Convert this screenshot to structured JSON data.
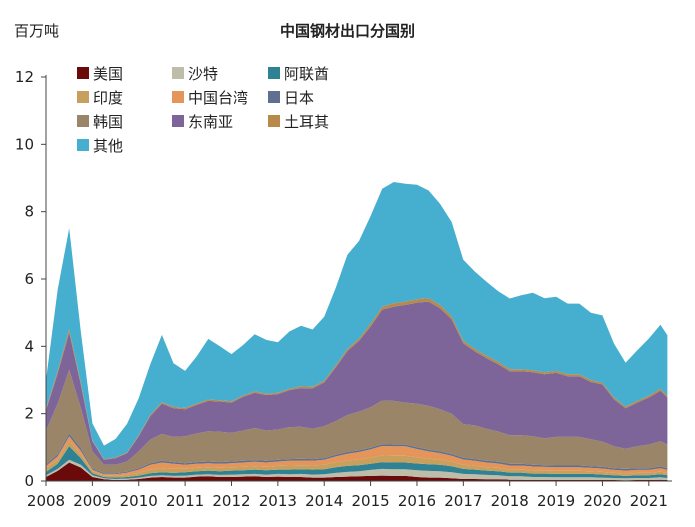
{
  "chart_data": {
    "type": "area",
    "stacked": true,
    "title": "中国钢材出口分国别",
    "ylabel": "百万吨",
    "ylim": [
      0,
      12
    ],
    "yticks": [
      0,
      2,
      4,
      6,
      8,
      10,
      12
    ],
    "xlim": [
      2008.0,
      2021.5
    ],
    "xticks": [
      "2008",
      "2009",
      "2010",
      "2011",
      "2012",
      "2013",
      "2014",
      "2015",
      "2016",
      "2017",
      "2018",
      "2019",
      "2020",
      "2021"
    ],
    "legend_position": "top-left",
    "x": [
      2008.0,
      2008.25,
      2008.5,
      2008.75,
      2009.0,
      2009.25,
      2009.5,
      2009.75,
      2010.0,
      2010.25,
      2010.5,
      2010.75,
      2011.0,
      2011.25,
      2011.5,
      2011.75,
      2012.0,
      2012.25,
      2012.5,
      2012.75,
      2013.0,
      2013.25,
      2013.5,
      2013.75,
      2014.0,
      2014.25,
      2014.5,
      2014.75,
      2015.0,
      2015.25,
      2015.5,
      2015.75,
      2016.0,
      2016.25,
      2016.5,
      2016.75,
      2017.0,
      2017.25,
      2017.5,
      2017.75,
      2018.0,
      2018.25,
      2018.5,
      2018.75,
      2019.0,
      2019.25,
      2019.5,
      2019.75,
      2020.0,
      2020.25,
      2020.5,
      2020.75,
      2021.0,
      2021.25,
      2021.4
    ],
    "series": [
      {
        "name": "美国",
        "color": "#6b0a0a",
        "values": [
          0.12,
          0.3,
          0.55,
          0.4,
          0.12,
          0.05,
          0.03,
          0.04,
          0.06,
          0.1,
          0.12,
          0.1,
          0.1,
          0.13,
          0.14,
          0.12,
          0.12,
          0.13,
          0.14,
          0.12,
          0.13,
          0.12,
          0.12,
          0.1,
          0.1,
          0.12,
          0.13,
          0.14,
          0.15,
          0.16,
          0.15,
          0.15,
          0.12,
          0.1,
          0.1,
          0.08,
          0.06,
          0.06,
          0.05,
          0.05,
          0.04,
          0.04,
          0.03,
          0.03,
          0.03,
          0.03,
          0.03,
          0.03,
          0.03,
          0.03,
          0.02,
          0.03,
          0.03,
          0.04,
          0.03
        ]
      },
      {
        "name": "沙特",
        "color": "#bdbdaa",
        "values": [
          0.05,
          0.06,
          0.08,
          0.08,
          0.05,
          0.03,
          0.03,
          0.03,
          0.04,
          0.05,
          0.05,
          0.05,
          0.06,
          0.06,
          0.06,
          0.06,
          0.07,
          0.07,
          0.07,
          0.07,
          0.08,
          0.08,
          0.09,
          0.09,
          0.1,
          0.12,
          0.14,
          0.15,
          0.18,
          0.2,
          0.2,
          0.2,
          0.2,
          0.2,
          0.19,
          0.18,
          0.15,
          0.14,
          0.13,
          0.12,
          0.1,
          0.1,
          0.09,
          0.09,
          0.08,
          0.08,
          0.08,
          0.08,
          0.07,
          0.06,
          0.06,
          0.06,
          0.06,
          0.07,
          0.06
        ]
      },
      {
        "name": "阿联酋",
        "color": "#2f8194",
        "values": [
          0.1,
          0.15,
          0.4,
          0.2,
          0.06,
          0.04,
          0.04,
          0.05,
          0.06,
          0.08,
          0.09,
          0.09,
          0.1,
          0.1,
          0.11,
          0.11,
          0.12,
          0.12,
          0.13,
          0.13,
          0.13,
          0.14,
          0.14,
          0.15,
          0.15,
          0.17,
          0.18,
          0.18,
          0.18,
          0.2,
          0.2,
          0.2,
          0.2,
          0.2,
          0.19,
          0.18,
          0.15,
          0.14,
          0.13,
          0.12,
          0.11,
          0.11,
          0.1,
          0.1,
          0.1,
          0.1,
          0.1,
          0.1,
          0.09,
          0.08,
          0.07,
          0.08,
          0.08,
          0.09,
          0.08
        ]
      },
      {
        "name": "印度",
        "color": "#c6a05c",
        "values": [
          0.1,
          0.12,
          0.15,
          0.12,
          0.06,
          0.04,
          0.05,
          0.06,
          0.08,
          0.1,
          0.12,
          0.12,
          0.1,
          0.1,
          0.1,
          0.1,
          0.1,
          0.1,
          0.1,
          0.1,
          0.11,
          0.12,
          0.12,
          0.12,
          0.13,
          0.15,
          0.16,
          0.17,
          0.18,
          0.2,
          0.2,
          0.2,
          0.18,
          0.16,
          0.15,
          0.13,
          0.12,
          0.11,
          0.1,
          0.1,
          0.09,
          0.09,
          0.09,
          0.09,
          0.09,
          0.09,
          0.09,
          0.08,
          0.08,
          0.07,
          0.07,
          0.07,
          0.07,
          0.08,
          0.07
        ]
      },
      {
        "name": "中国台湾",
        "color": "#e5955a",
        "values": [
          0.08,
          0.1,
          0.15,
          0.1,
          0.05,
          0.04,
          0.05,
          0.07,
          0.1,
          0.15,
          0.17,
          0.15,
          0.12,
          0.12,
          0.12,
          0.12,
          0.12,
          0.13,
          0.13,
          0.13,
          0.13,
          0.14,
          0.14,
          0.14,
          0.15,
          0.17,
          0.2,
          0.22,
          0.25,
          0.28,
          0.28,
          0.28,
          0.25,
          0.22,
          0.2,
          0.18,
          0.16,
          0.15,
          0.14,
          0.13,
          0.12,
          0.12,
          0.12,
          0.11,
          0.11,
          0.11,
          0.11,
          0.1,
          0.1,
          0.09,
          0.09,
          0.09,
          0.09,
          0.1,
          0.09
        ]
      },
      {
        "name": "日本",
        "color": "#5e6f8f",
        "values": [
          0.05,
          0.06,
          0.08,
          0.07,
          0.04,
          0.03,
          0.03,
          0.03,
          0.04,
          0.05,
          0.05,
          0.05,
          0.05,
          0.05,
          0.05,
          0.05,
          0.05,
          0.05,
          0.05,
          0.05,
          0.05,
          0.05,
          0.05,
          0.05,
          0.05,
          0.05,
          0.05,
          0.05,
          0.05,
          0.05,
          0.05,
          0.05,
          0.05,
          0.05,
          0.05,
          0.05,
          0.05,
          0.05,
          0.05,
          0.05,
          0.05,
          0.05,
          0.05,
          0.05,
          0.05,
          0.05,
          0.05,
          0.05,
          0.05,
          0.05,
          0.05,
          0.05,
          0.05,
          0.05,
          0.05
        ]
      },
      {
        "name": "韩国",
        "color": "#9a8568",
        "values": [
          1.0,
          1.5,
          1.9,
          1.2,
          0.5,
          0.25,
          0.25,
          0.3,
          0.5,
          0.7,
          0.8,
          0.75,
          0.8,
          0.85,
          0.9,
          0.9,
          0.85,
          0.9,
          0.95,
          0.9,
          0.9,
          0.95,
          0.95,
          0.9,
          0.95,
          1.0,
          1.1,
          1.15,
          1.2,
          1.3,
          1.3,
          1.25,
          1.3,
          1.3,
          1.25,
          1.2,
          1.0,
          1.0,
          0.95,
          0.9,
          0.85,
          0.85,
          0.85,
          0.8,
          0.85,
          0.85,
          0.85,
          0.8,
          0.75,
          0.65,
          0.6,
          0.65,
          0.7,
          0.75,
          0.7
        ]
      },
      {
        "name": "东南亚",
        "color": "#7d659a",
        "values": [
          0.6,
          0.9,
          1.1,
          0.7,
          0.3,
          0.15,
          0.2,
          0.25,
          0.45,
          0.7,
          0.9,
          0.85,
          0.8,
          0.85,
          0.9,
          0.9,
          0.9,
          1.0,
          1.05,
          1.05,
          1.05,
          1.1,
          1.15,
          1.2,
          1.3,
          1.6,
          1.9,
          2.1,
          2.4,
          2.7,
          2.8,
          2.9,
          3.0,
          3.1,
          3.0,
          2.8,
          2.4,
          2.2,
          2.1,
          2.0,
          1.9,
          1.9,
          1.9,
          1.9,
          1.9,
          1.8,
          1.8,
          1.7,
          1.7,
          1.4,
          1.2,
          1.3,
          1.4,
          1.5,
          1.4
        ]
      },
      {
        "name": "土耳其",
        "color": "#b8894a",
        "values": [
          0.05,
          0.08,
          0.1,
          0.07,
          0.03,
          0.02,
          0.02,
          0.02,
          0.03,
          0.04,
          0.04,
          0.04,
          0.04,
          0.04,
          0.04,
          0.04,
          0.04,
          0.04,
          0.04,
          0.04,
          0.04,
          0.04,
          0.05,
          0.05,
          0.05,
          0.06,
          0.06,
          0.07,
          0.08,
          0.09,
          0.1,
          0.1,
          0.1,
          0.1,
          0.1,
          0.09,
          0.08,
          0.07,
          0.07,
          0.07,
          0.06,
          0.06,
          0.06,
          0.06,
          0.06,
          0.06,
          0.06,
          0.06,
          0.05,
          0.05,
          0.05,
          0.05,
          0.05,
          0.06,
          0.05
        ]
      },
      {
        "name": "其他",
        "color": "#46aece",
        "values": [
          0.85,
          2.4,
          3.0,
          1.5,
          0.5,
          0.4,
          0.55,
          0.85,
          1.1,
          1.5,
          2.0,
          1.3,
          1.1,
          1.4,
          1.8,
          1.6,
          1.4,
          1.5,
          1.7,
          1.6,
          1.5,
          1.7,
          1.8,
          1.7,
          1.9,
          2.3,
          2.8,
          2.9,
          3.2,
          3.5,
          3.6,
          3.5,
          3.4,
          3.2,
          3.0,
          2.8,
          2.4,
          2.3,
          2.2,
          2.1,
          2.1,
          2.2,
          2.3,
          2.2,
          2.2,
          2.1,
          2.1,
          2.0,
          2.0,
          1.6,
          1.3,
          1.5,
          1.7,
          1.9,
          1.8
        ]
      }
    ]
  }
}
